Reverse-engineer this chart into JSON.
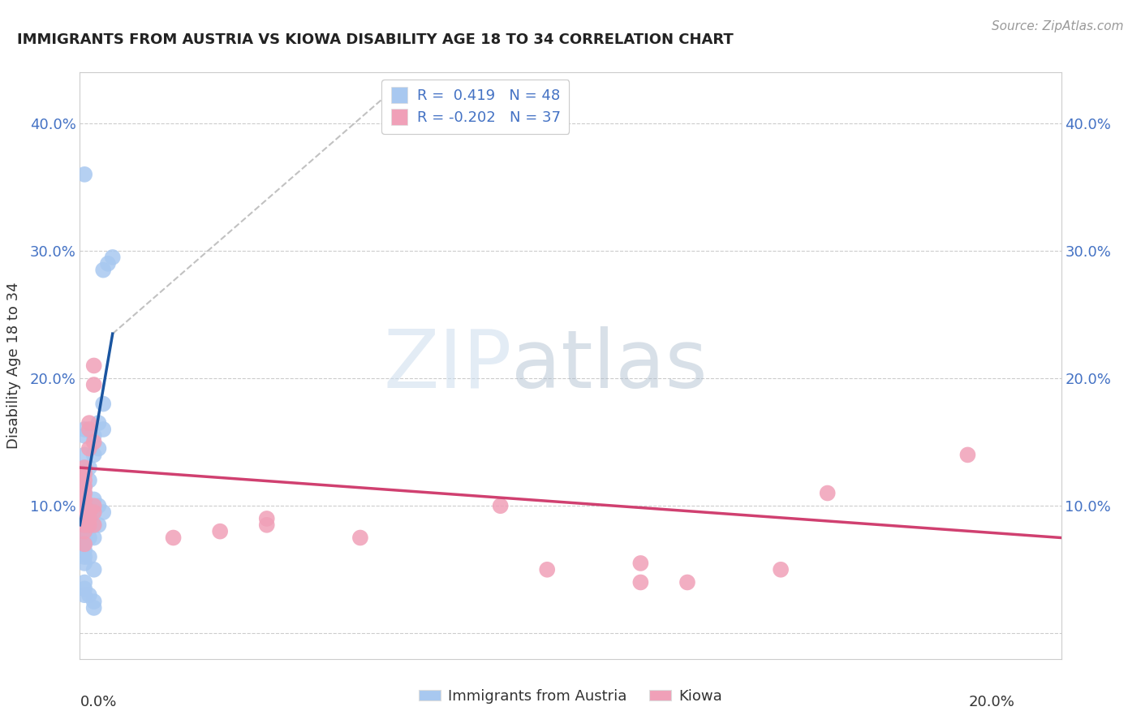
{
  "title": "IMMIGRANTS FROM AUSTRIA VS KIOWA DISABILITY AGE 18 TO 34 CORRELATION CHART",
  "source": "Source: ZipAtlas.com",
  "ylabel": "Disability Age 18 to 34",
  "xlim": [
    0.0,
    0.21
  ],
  "ylim": [
    -0.02,
    0.44
  ],
  "watermark_zip": "ZIP",
  "watermark_atlas": "atlas",
  "legend_blue_label": "Immigrants from Austria",
  "legend_pink_label": "Kiowa",
  "R_blue": 0.419,
  "N_blue": 48,
  "R_pink": -0.202,
  "N_pink": 37,
  "blue_color": "#A8C8F0",
  "pink_color": "#F0A0B8",
  "blue_line_color": "#1A55A0",
  "pink_line_color": "#D04070",
  "blue_scatter": [
    [
      0.001,
      0.035
    ],
    [
      0.001,
      0.03
    ],
    [
      0.001,
      0.04
    ],
    [
      0.001,
      0.055
    ],
    [
      0.001,
      0.06
    ],
    [
      0.001,
      0.065
    ],
    [
      0.001,
      0.07
    ],
    [
      0.001,
      0.075
    ],
    [
      0.001,
      0.08
    ],
    [
      0.001,
      0.085
    ],
    [
      0.001,
      0.09
    ],
    [
      0.001,
      0.095
    ],
    [
      0.001,
      0.1
    ],
    [
      0.001,
      0.11
    ],
    [
      0.001,
      0.115
    ],
    [
      0.001,
      0.125
    ],
    [
      0.001,
      0.13
    ],
    [
      0.001,
      0.14
    ],
    [
      0.001,
      0.155
    ],
    [
      0.001,
      0.16
    ],
    [
      0.002,
      0.03
    ],
    [
      0.002,
      0.06
    ],
    [
      0.002,
      0.075
    ],
    [
      0.002,
      0.085
    ],
    [
      0.002,
      0.095
    ],
    [
      0.002,
      0.1
    ],
    [
      0.002,
      0.12
    ],
    [
      0.002,
      0.13
    ],
    [
      0.003,
      0.025
    ],
    [
      0.003,
      0.05
    ],
    [
      0.003,
      0.075
    ],
    [
      0.003,
      0.085
    ],
    [
      0.003,
      0.095
    ],
    [
      0.003,
      0.105
    ],
    [
      0.003,
      0.14
    ],
    [
      0.003,
      0.155
    ],
    [
      0.004,
      0.085
    ],
    [
      0.004,
      0.1
    ],
    [
      0.004,
      0.145
    ],
    [
      0.004,
      0.165
    ],
    [
      0.005,
      0.095
    ],
    [
      0.005,
      0.16
    ],
    [
      0.005,
      0.18
    ],
    [
      0.005,
      0.285
    ],
    [
      0.006,
      0.29
    ],
    [
      0.007,
      0.295
    ],
    [
      0.001,
      0.36
    ],
    [
      0.003,
      0.02
    ]
  ],
  "pink_scatter": [
    [
      0.001,
      0.07
    ],
    [
      0.001,
      0.08
    ],
    [
      0.001,
      0.085
    ],
    [
      0.001,
      0.09
    ],
    [
      0.001,
      0.095
    ],
    [
      0.001,
      0.1
    ],
    [
      0.001,
      0.105
    ],
    [
      0.001,
      0.11
    ],
    [
      0.001,
      0.115
    ],
    [
      0.001,
      0.12
    ],
    [
      0.001,
      0.125
    ],
    [
      0.001,
      0.13
    ],
    [
      0.002,
      0.085
    ],
    [
      0.002,
      0.09
    ],
    [
      0.002,
      0.095
    ],
    [
      0.002,
      0.145
    ],
    [
      0.002,
      0.16
    ],
    [
      0.002,
      0.165
    ],
    [
      0.003,
      0.085
    ],
    [
      0.003,
      0.095
    ],
    [
      0.003,
      0.1
    ],
    [
      0.003,
      0.15
    ],
    [
      0.003,
      0.195
    ],
    [
      0.003,
      0.21
    ],
    [
      0.02,
      0.075
    ],
    [
      0.03,
      0.08
    ],
    [
      0.04,
      0.085
    ],
    [
      0.04,
      0.09
    ],
    [
      0.06,
      0.075
    ],
    [
      0.09,
      0.1
    ],
    [
      0.1,
      0.05
    ],
    [
      0.12,
      0.04
    ],
    [
      0.12,
      0.055
    ],
    [
      0.13,
      0.04
    ],
    [
      0.16,
      0.11
    ],
    [
      0.15,
      0.05
    ],
    [
      0.19,
      0.14
    ]
  ],
  "yticks": [
    0.0,
    0.1,
    0.2,
    0.3,
    0.4
  ],
  "ytick_labels_left": [
    "",
    "10.0%",
    "20.0%",
    "30.0%",
    "40.0%"
  ],
  "ytick_labels_right": [
    "10.0%",
    "20.0%",
    "30.0%",
    "40.0%"
  ],
  "blue_line_x": [
    0.0,
    0.007
  ],
  "blue_line_y": [
    0.085,
    0.235
  ],
  "dash_line_x": [
    0.007,
    0.065
  ],
  "dash_line_y": [
    0.235,
    0.42
  ],
  "pink_line_x": [
    0.0,
    0.21
  ],
  "pink_line_y": [
    0.13,
    0.075
  ]
}
